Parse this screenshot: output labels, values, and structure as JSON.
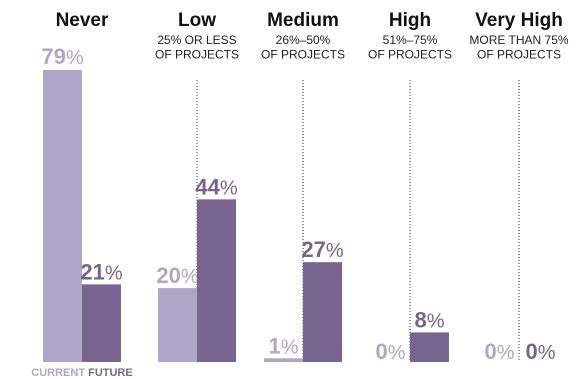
{
  "chart_data": {
    "type": "bar",
    "categories": [
      "Never",
      "Low",
      "Medium",
      "High",
      "Very High"
    ],
    "category_subtitles": [
      [],
      [
        "25% OR LESS",
        "OF PROJECTS"
      ],
      [
        "26%–50%",
        "OF PROJECTS"
      ],
      [
        "51%–75%",
        "OF PROJECTS"
      ],
      [
        "MORE THAN 75%",
        "OF PROJECTS"
      ]
    ],
    "series": [
      {
        "name": "CURRENT",
        "values": [
          79,
          20,
          1,
          0,
          0
        ],
        "color": "#b0a6c8"
      },
      {
        "name": "FUTURE",
        "values": [
          21,
          44,
          27,
          8,
          0
        ],
        "color": "#77648f"
      }
    ],
    "value_suffix": "%",
    "ylim": [
      0,
      79
    ],
    "divider_color": "#333333"
  }
}
